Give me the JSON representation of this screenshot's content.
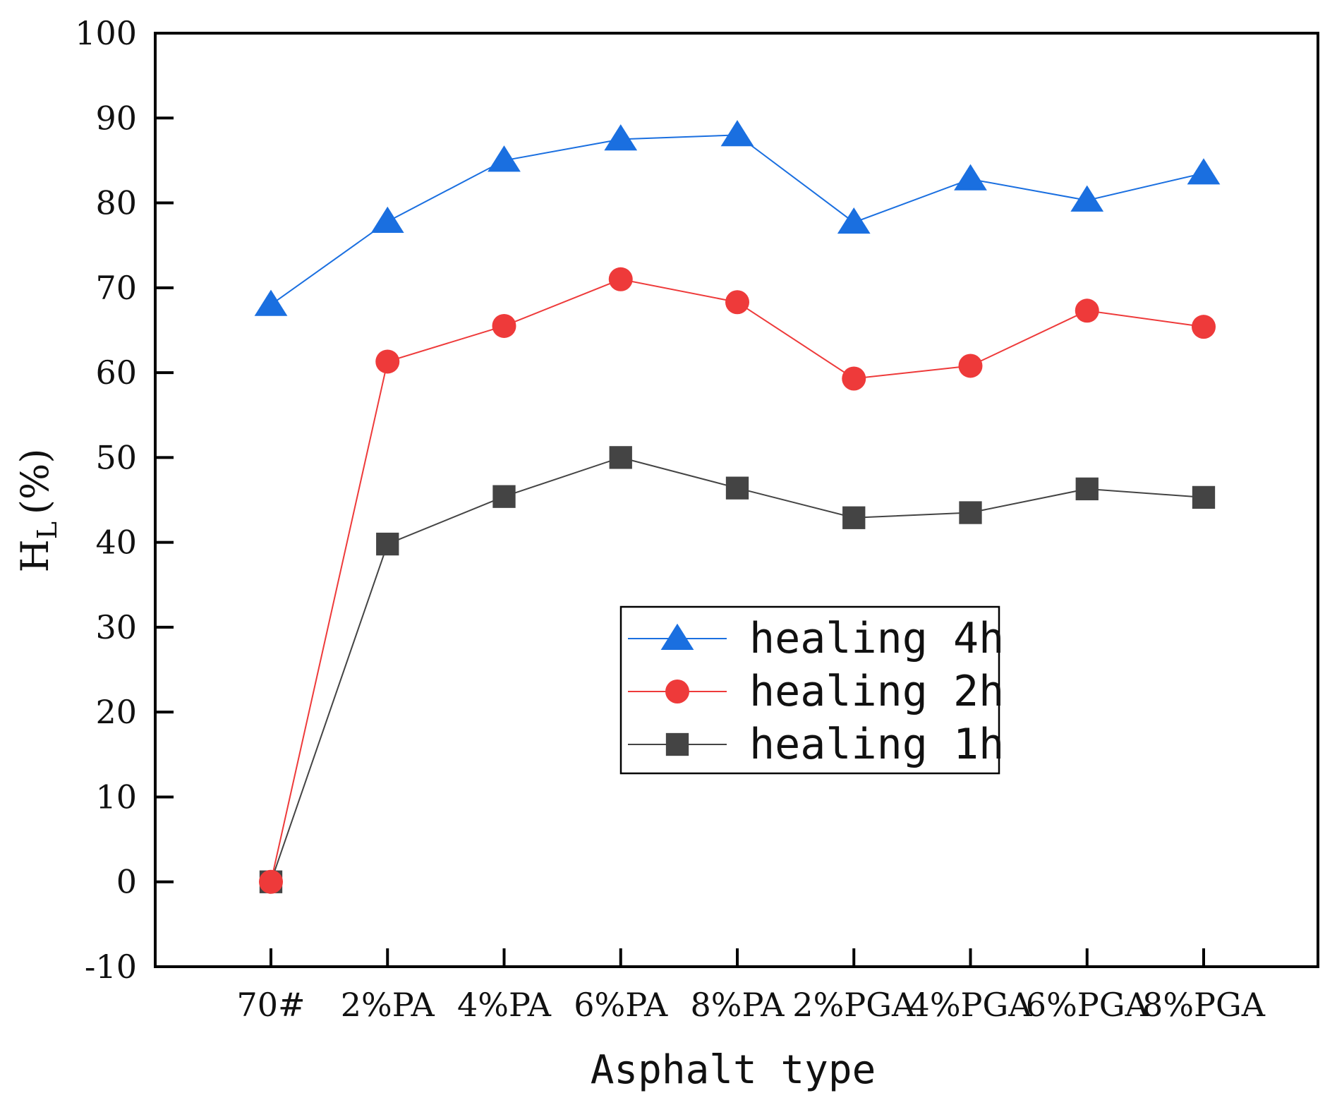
{
  "chart_data": {
    "type": "line",
    "title": "",
    "xlabel": "Asphalt type",
    "ylabel": {
      "main": "H",
      "subscript": "L",
      "unit": "(%)"
    },
    "categories": [
      "70#",
      "2%PA",
      "4%PA",
      "6%PA",
      "8%PA",
      "2%PGA",
      "4%PGA",
      "6%PGA",
      "8%PGA"
    ],
    "ylim": [
      -10,
      100
    ],
    "yticks": [
      -10,
      0,
      10,
      20,
      30,
      40,
      50,
      60,
      70,
      80,
      90,
      100
    ],
    "grid": false,
    "legend_position": "center-right",
    "series": [
      {
        "name": "healing 4h",
        "color": "#1a6fe0",
        "marker": "triangle",
        "values": [
          68.0,
          77.8,
          85.0,
          87.5,
          88.0,
          77.7,
          82.8,
          80.3,
          83.5
        ]
      },
      {
        "name": "healing 2h",
        "color": "#ee3a3a",
        "marker": "circle",
        "values": [
          0.0,
          61.3,
          65.5,
          71.0,
          68.3,
          59.3,
          60.8,
          67.3,
          65.4
        ]
      },
      {
        "name": "healing 1h",
        "color": "#444444",
        "marker": "square",
        "values": [
          0.0,
          39.8,
          45.4,
          50.0,
          46.4,
          42.9,
          43.5,
          46.3,
          45.3
        ]
      }
    ]
  }
}
